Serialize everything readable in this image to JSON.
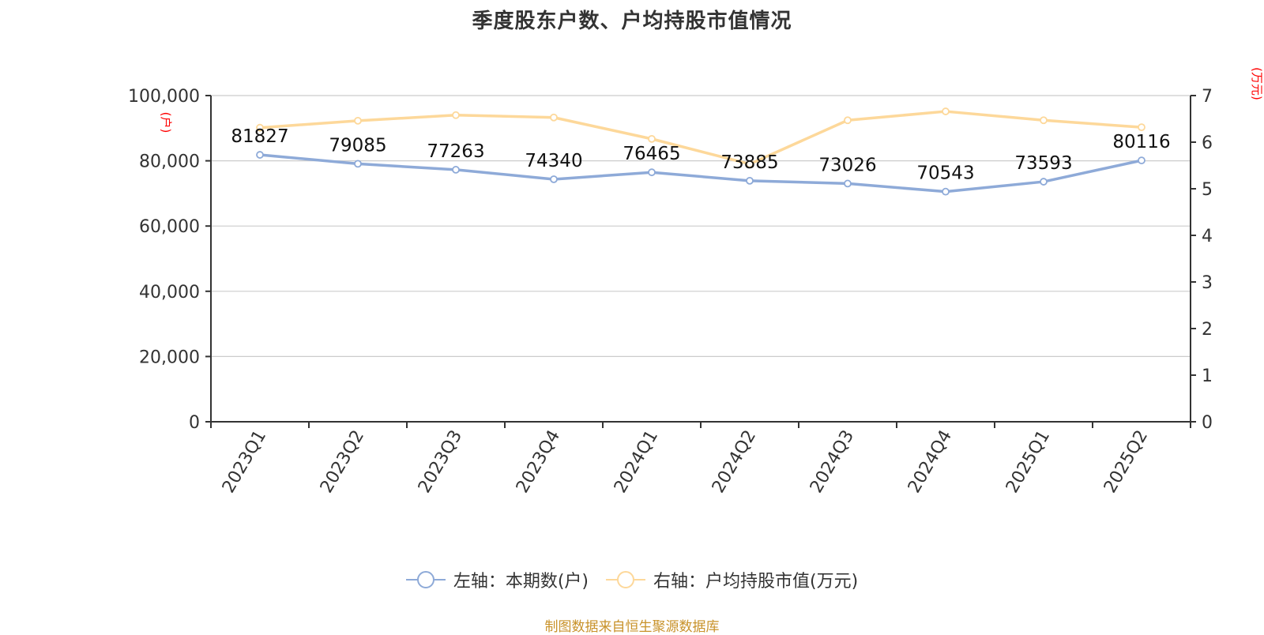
{
  "title": "季度股东户数、户均持股市值情况",
  "left_axis_unit": "(户)",
  "right_axis_unit": "(万元)",
  "legend": [
    {
      "label": "左轴：本期数(户)",
      "color": "#8eaad8"
    },
    {
      "label": "右轴：户均持股市值(万元)",
      "color": "#fdd89a"
    }
  ],
  "footer": "制图数据来自恒生聚源数据库",
  "colors": {
    "blue_series": "#8eaad8",
    "yellow_series": "#fdd89a",
    "unit_label": "#ff0000",
    "axis": "#333333",
    "grid": "#cccccc",
    "footer": "#c8922a"
  },
  "chart_data": {
    "type": "line",
    "title": "季度股东户数、户均持股市值情况",
    "categories": [
      "2023Q1",
      "2023Q2",
      "2023Q3",
      "2023Q4",
      "2024Q1",
      "2024Q2",
      "2024Q3",
      "2024Q4",
      "2025Q1",
      "2025Q2"
    ],
    "series": [
      {
        "name": "左轴：本期数(户)",
        "axis": "left",
        "values": [
          81827,
          79085,
          77263,
          74340,
          76465,
          73885,
          73026,
          70543,
          73593,
          80116
        ],
        "data_labels": true
      },
      {
        "name": "右轴：户均持股市值(万元)",
        "axis": "right",
        "values": [
          6.31,
          6.46,
          6.58,
          6.53,
          6.07,
          5.53,
          6.47,
          6.66,
          6.47,
          6.32
        ],
        "data_labels": false
      }
    ],
    "left_axis": {
      "label": "(户)",
      "min": 0,
      "max": 100000,
      "ticks": [
        "0",
        "20,000",
        "40,000",
        "60,000",
        "80,000",
        "100,000"
      ]
    },
    "right_axis": {
      "label": "(万元)",
      "min": 0,
      "max": 7,
      "ticks": [
        "0",
        "1",
        "2",
        "3",
        "4",
        "5",
        "6",
        "7"
      ]
    },
    "xlabel": "",
    "grid": true,
    "legend_position": "bottom"
  }
}
